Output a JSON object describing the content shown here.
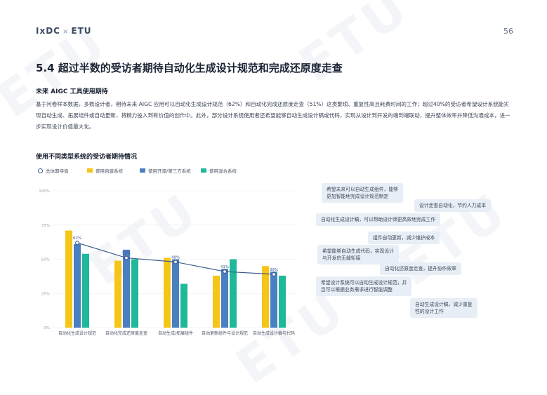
{
  "header": {
    "brand_left": "IxDC",
    "brand_sep": "×",
    "brand_right": "ETU",
    "page_number": "56"
  },
  "section": {
    "title": "5.4 超过半数的受访者期待自动化生成设计规范和完成还原度走查",
    "subtitle": "未来 AIGC 工具使用期待",
    "paragraph": "基于问卷样本数据，多数设计者，期待未来 AIGC 应用可以自动化生成设计规范（62%）和自动化完成还原度走查（51%）这类繁琐、重复性高且耗费时间的工作；超过40%的受访者希望设计系统能实现自动生成、拓展组件或自动更新，将精力投入到有价值的创作中。此外，部分设计系统使用者还希望能够自动生成设计稿或代码，实现从设计到开发的端到端联动，提升整体效率并降低沟通成本，进一步实现设计价值最大化。",
    "watermark": "ETU"
  },
  "chart": {
    "title": "使用不同类型系统的受访者期待情况",
    "legend": [
      {
        "label": "总体期待值",
        "type": "line",
        "color": "#3d5a8c"
      },
      {
        "label": "使用自建系统",
        "type": "bar",
        "color": "#f5c518"
      },
      {
        "label": "使用开源/第三方系统",
        "type": "bar",
        "color": "#4a7fc1"
      },
      {
        "label": "使用混合系统",
        "type": "bar",
        "color": "#1fb89a"
      }
    ]
  },
  "chart_data": {
    "type": "bar",
    "categories": [
      "自动化生成设计规范",
      "自动化完成还原度走查",
      "自动生成/拓展组件",
      "自动更新组件与设计规范",
      "自动生成设计稿与代码"
    ],
    "series": [
      {
        "name": "使用自建系统",
        "values": [
          71,
          49,
          51,
          38,
          45
        ]
      },
      {
        "name": "使用开源/第三方系统",
        "values": [
          61,
          57,
          50,
          43,
          41
        ]
      },
      {
        "name": "使用混合系统",
        "values": [
          54,
          50,
          32,
          50,
          38
        ]
      }
    ],
    "line": {
      "name": "总体期待值",
      "values": [
        62,
        51,
        48,
        41,
        39
      ],
      "labels": [
        "62%",
        "51%",
        "48%",
        "41%",
        "39%"
      ]
    },
    "yticks": [
      "0%",
      "25%",
      "50%",
      "75%",
      "100%"
    ],
    "ylim": [
      0,
      100
    ],
    "colors": {
      "line": "#3d5a8c",
      "self": "#f5c518",
      "open": "#4a7fc1",
      "mixed": "#1fb89a"
    }
  },
  "quotes": [
    "希望未来可以自动生成组件，能够\n更加智能地完成设计规范制定",
    "设计走查自动化，节约人力成本",
    "自动化生成设计稿，可以帮助设计师更高效地完成工作",
    "组件自动更新，减少维护成本",
    "希望能够自动生成代码，实现设计\n与开发的无缝衔接",
    "自动化还原度走查，提升协作效率",
    "希望设计系统可以自动生成设计规范，并\n且可以根据业务需求进行智能调整",
    "自动生成设计稿，减少重复\n性的设计工作"
  ]
}
